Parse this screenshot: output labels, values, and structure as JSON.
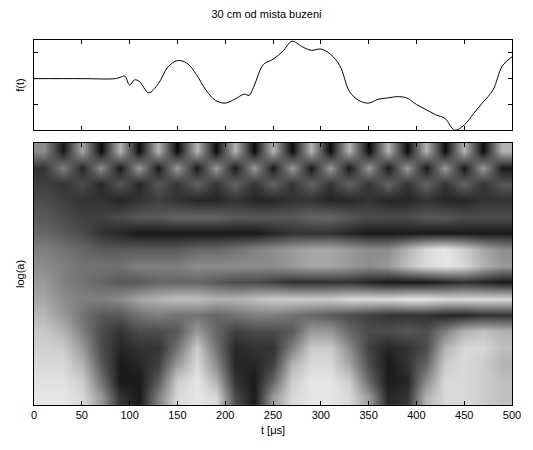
{
  "chart_data": [
    {
      "type": "line",
      "title": "30 cm od mista buzeni",
      "ylabel": "f(t)",
      "color": "#000000",
      "x": [
        0,
        50,
        85,
        90,
        95,
        100,
        105,
        110,
        120,
        130,
        140,
        150,
        160,
        170,
        180,
        190,
        200,
        210,
        220,
        225,
        230,
        240,
        250,
        260,
        270,
        280,
        290,
        300,
        310,
        320,
        330,
        340,
        350,
        360,
        370,
        380,
        390,
        400,
        410,
        420,
        430,
        440,
        450,
        460,
        470,
        480,
        490,
        500
      ],
      "values": [
        0,
        0,
        0,
        0.05,
        0.1,
        -0.25,
        -0.05,
        -0.1,
        -0.55,
        -0.2,
        0.45,
        0.7,
        0.6,
        0.15,
        -0.45,
        -0.85,
        -0.95,
        -0.8,
        -0.6,
        -0.65,
        -0.3,
        0.55,
        0.75,
        1.05,
        1.45,
        1.25,
        1.1,
        1.15,
        0.95,
        0.5,
        -0.5,
        -0.85,
        -0.95,
        -0.8,
        -0.75,
        -0.7,
        -0.75,
        -1.0,
        -1.2,
        -1.4,
        -1.55,
        -2.0,
        -1.8,
        -1.35,
        -0.9,
        -0.45,
        0.5,
        0.85
      ],
      "xlim": [
        0,
        500
      ],
      "xticks": [
        0,
        50,
        100,
        150,
        200,
        250,
        300,
        350,
        400,
        450,
        500
      ],
      "ylim": [
        -2,
        1.5
      ],
      "yticks": [
        -1,
        0,
        1
      ],
      "tick_labels": false
    },
    {
      "type": "heatmap",
      "xlabel": "t [μs]",
      "ylabel": "log(a)",
      "x": [
        10,
        30,
        50,
        70,
        90,
        110,
        130,
        150,
        170,
        190,
        210,
        230,
        250,
        270,
        290,
        310,
        330,
        350,
        370,
        390,
        410,
        430,
        450,
        470,
        490
      ],
      "y": [
        0,
        1,
        2,
        3,
        4,
        5,
        6,
        7,
        8,
        9,
        10,
        11,
        12,
        13,
        14,
        15
      ],
      "z": [
        [
          0.9,
          0.9,
          0.85,
          0.6,
          0.2,
          0.1,
          0.5,
          0.85,
          0.9,
          0.85,
          0.3,
          0.1,
          0.6,
          0.85,
          0.9,
          0.9,
          0.85,
          0.6,
          0.15,
          0.2,
          0.7,
          0.85,
          0.85,
          0.8,
          0.75
        ],
        [
          0.88,
          0.88,
          0.8,
          0.45,
          0.1,
          0.1,
          0.35,
          0.8,
          0.9,
          0.7,
          0.2,
          0.1,
          0.4,
          0.8,
          0.9,
          0.9,
          0.8,
          0.4,
          0.1,
          0.15,
          0.55,
          0.85,
          0.85,
          0.8,
          0.75
        ],
        [
          0.85,
          0.85,
          0.7,
          0.35,
          0.1,
          0.15,
          0.25,
          0.6,
          0.85,
          0.55,
          0.15,
          0.15,
          0.25,
          0.7,
          0.85,
          0.85,
          0.65,
          0.3,
          0.1,
          0.2,
          0.4,
          0.8,
          0.85,
          0.8,
          0.7
        ],
        [
          0.82,
          0.8,
          0.6,
          0.3,
          0.15,
          0.2,
          0.2,
          0.45,
          0.8,
          0.45,
          0.15,
          0.2,
          0.2,
          0.5,
          0.8,
          0.8,
          0.55,
          0.25,
          0.15,
          0.2,
          0.3,
          0.7,
          0.85,
          0.85,
          0.75
        ],
        [
          0.78,
          0.7,
          0.5,
          0.3,
          0.2,
          0.3,
          0.3,
          0.35,
          0.6,
          0.4,
          0.25,
          0.3,
          0.3,
          0.35,
          0.6,
          0.6,
          0.4,
          0.3,
          0.3,
          0.35,
          0.3,
          0.5,
          0.7,
          0.75,
          0.7
        ],
        [
          0.72,
          0.6,
          0.45,
          0.35,
          0.35,
          0.45,
          0.5,
          0.45,
          0.45,
          0.4,
          0.45,
          0.5,
          0.5,
          0.45,
          0.4,
          0.35,
          0.3,
          0.25,
          0.2,
          0.2,
          0.2,
          0.15,
          0.15,
          0.2,
          0.2
        ],
        [
          0.65,
          0.55,
          0.5,
          0.5,
          0.55,
          0.65,
          0.7,
          0.75,
          0.75,
          0.7,
          0.7,
          0.75,
          0.8,
          0.8,
          0.8,
          0.8,
          0.85,
          0.85,
          0.85,
          0.9,
          0.9,
          0.85,
          0.85,
          0.85,
          0.85
        ],
        [
          0.6,
          0.5,
          0.45,
          0.4,
          0.35,
          0.35,
          0.4,
          0.4,
          0.4,
          0.35,
          0.3,
          0.3,
          0.25,
          0.2,
          0.2,
          0.2,
          0.2,
          0.15,
          0.1,
          0.1,
          0.1,
          0.15,
          0.2,
          0.15,
          0.1
        ],
        [
          0.55,
          0.5,
          0.45,
          0.45,
          0.45,
          0.5,
          0.5,
          0.5,
          0.55,
          0.55,
          0.55,
          0.55,
          0.55,
          0.6,
          0.65,
          0.65,
          0.6,
          0.55,
          0.6,
          0.75,
          0.85,
          0.9,
          0.85,
          0.7,
          0.6
        ],
        [
          0.5,
          0.45,
          0.4,
          0.35,
          0.35,
          0.35,
          0.35,
          0.35,
          0.4,
          0.4,
          0.45,
          0.5,
          0.55,
          0.6,
          0.65,
          0.65,
          0.6,
          0.55,
          0.55,
          0.7,
          0.85,
          0.9,
          0.8,
          0.65,
          0.55
        ],
        [
          0.4,
          0.35,
          0.3,
          0.2,
          0.15,
          0.1,
          0.1,
          0.1,
          0.1,
          0.1,
          0.1,
          0.1,
          0.15,
          0.2,
          0.2,
          0.2,
          0.15,
          0.1,
          0.1,
          0.1,
          0.1,
          0.1,
          0.1,
          0.1,
          0.1
        ],
        [
          0.35,
          0.3,
          0.25,
          0.25,
          0.3,
          0.35,
          0.35,
          0.4,
          0.4,
          0.4,
          0.35,
          0.35,
          0.35,
          0.35,
          0.4,
          0.4,
          0.35,
          0.3,
          0.3,
          0.3,
          0.35,
          0.35,
          0.3,
          0.3,
          0.3
        ],
        [
          0.3,
          0.25,
          0.2,
          0.2,
          0.15,
          0.2,
          0.25,
          0.2,
          0.15,
          0.15,
          0.2,
          0.15,
          0.15,
          0.2,
          0.2,
          0.15,
          0.15,
          0.2,
          0.15,
          0.15,
          0.2,
          0.15,
          0.15,
          0.2,
          0.2
        ],
        [
          0.25,
          0.2,
          0.3,
          0.15,
          0.35,
          0.15,
          0.35,
          0.2,
          0.4,
          0.2,
          0.4,
          0.2,
          0.4,
          0.2,
          0.4,
          0.2,
          0.4,
          0.2,
          0.4,
          0.2,
          0.4,
          0.2,
          0.4,
          0.2,
          0.35
        ],
        [
          0.2,
          0.5,
          0.15,
          0.55,
          0.1,
          0.6,
          0.1,
          0.6,
          0.1,
          0.6,
          0.1,
          0.6,
          0.1,
          0.6,
          0.1,
          0.6,
          0.1,
          0.6,
          0.1,
          0.6,
          0.1,
          0.6,
          0.1,
          0.6,
          0.1
        ],
        [
          0.55,
          0.1,
          0.65,
          0.05,
          0.7,
          0.05,
          0.7,
          0.05,
          0.7,
          0.05,
          0.7,
          0.05,
          0.7,
          0.05,
          0.7,
          0.05,
          0.7,
          0.05,
          0.7,
          0.05,
          0.7,
          0.05,
          0.7,
          0.05,
          0.7
        ]
      ],
      "zlim": [
        0,
        1
      ],
      "xlim": [
        0,
        500
      ],
      "xticks": [
        0,
        50,
        100,
        150,
        200,
        250,
        300,
        350,
        400,
        450,
        500
      ],
      "ylim": [
        -0.5,
        15.5
      ],
      "tick_labels": "x"
    }
  ]
}
